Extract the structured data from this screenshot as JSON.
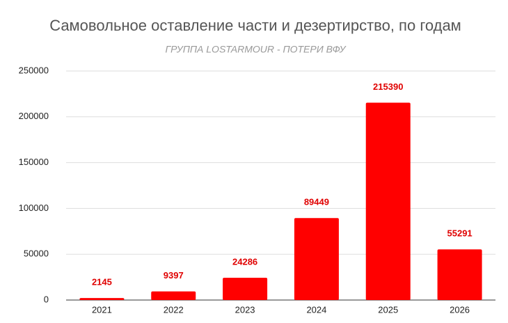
{
  "chart_data": {
    "type": "bar",
    "title": "Самовольное оставление части и дезертирство, по годам",
    "subtitle": "ГРУППА LOSTARMOUR - ПОТЕРИ ВФУ",
    "categories": [
      "2021",
      "2022",
      "2023",
      "2024",
      "2025",
      "2026"
    ],
    "values": [
      2145,
      9397,
      24286,
      89449,
      215390,
      55291
    ],
    "color": "#ff0000",
    "ylim": [
      0,
      250000
    ],
    "yticks": [
      0,
      50000,
      100000,
      150000,
      200000,
      250000
    ],
    "grid": true
  }
}
